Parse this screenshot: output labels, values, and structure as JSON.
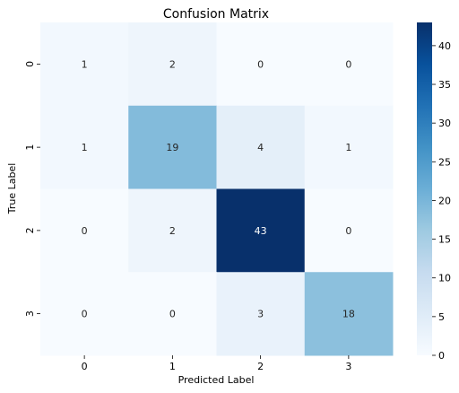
{
  "chart_data": {
    "type": "heatmap",
    "title": "Confusion Matrix",
    "xlabel": "Predicted Label",
    "ylabel": "True Label",
    "x_categories": [
      "0",
      "1",
      "2",
      "3"
    ],
    "y_categories": [
      "0",
      "1",
      "2",
      "3"
    ],
    "matrix": [
      [
        1,
        2,
        0,
        0
      ],
      [
        1,
        19,
        4,
        1
      ],
      [
        0,
        2,
        43,
        0
      ],
      [
        0,
        0,
        3,
        18
      ]
    ],
    "colormap": "Blues",
    "colorbar": {
      "min": 0,
      "max": 43,
      "ticks": [
        0,
        5,
        10,
        15,
        20,
        25,
        30,
        35,
        40
      ]
    },
    "annotation_colors": {
      "light": "#262626",
      "dark": "#ffffff"
    }
  }
}
